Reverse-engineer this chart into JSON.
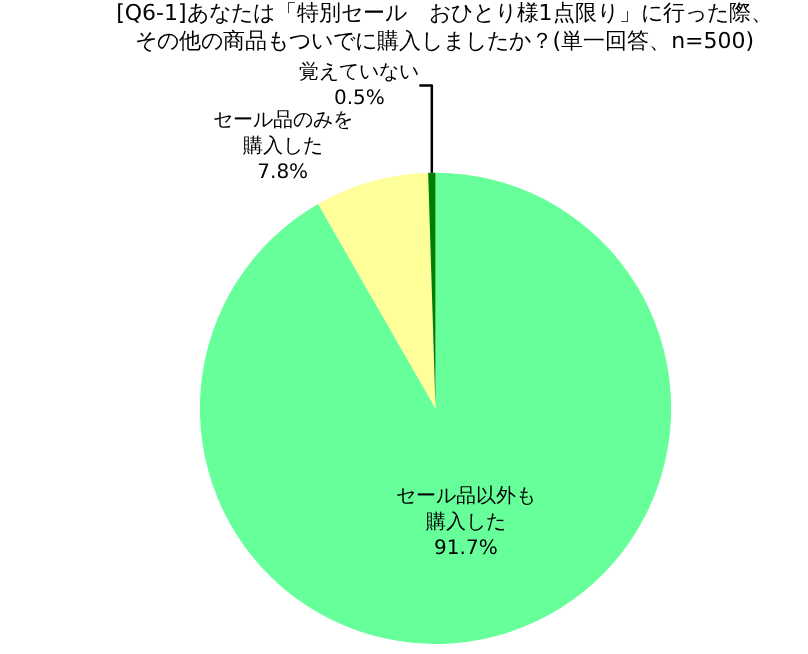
{
  "chart_data": {
    "type": "pie",
    "title": "[Q6-1]あなたは「特別セール　おひとり様1点限り」に行った際、その他の商品もついでに購入しましたか？(単一回答、n=500)",
    "categories": [
      "セール品以外も購入した",
      "セール品のみを購入した",
      "覚えていない"
    ],
    "values": [
      91.7,
      7.8,
      0.5
    ],
    "value_labels": [
      "91.7%",
      "7.8%",
      "0.5%"
    ],
    "colors": [
      "#66ff99",
      "#ffff99",
      "#008000"
    ],
    "legend": false
  }
}
